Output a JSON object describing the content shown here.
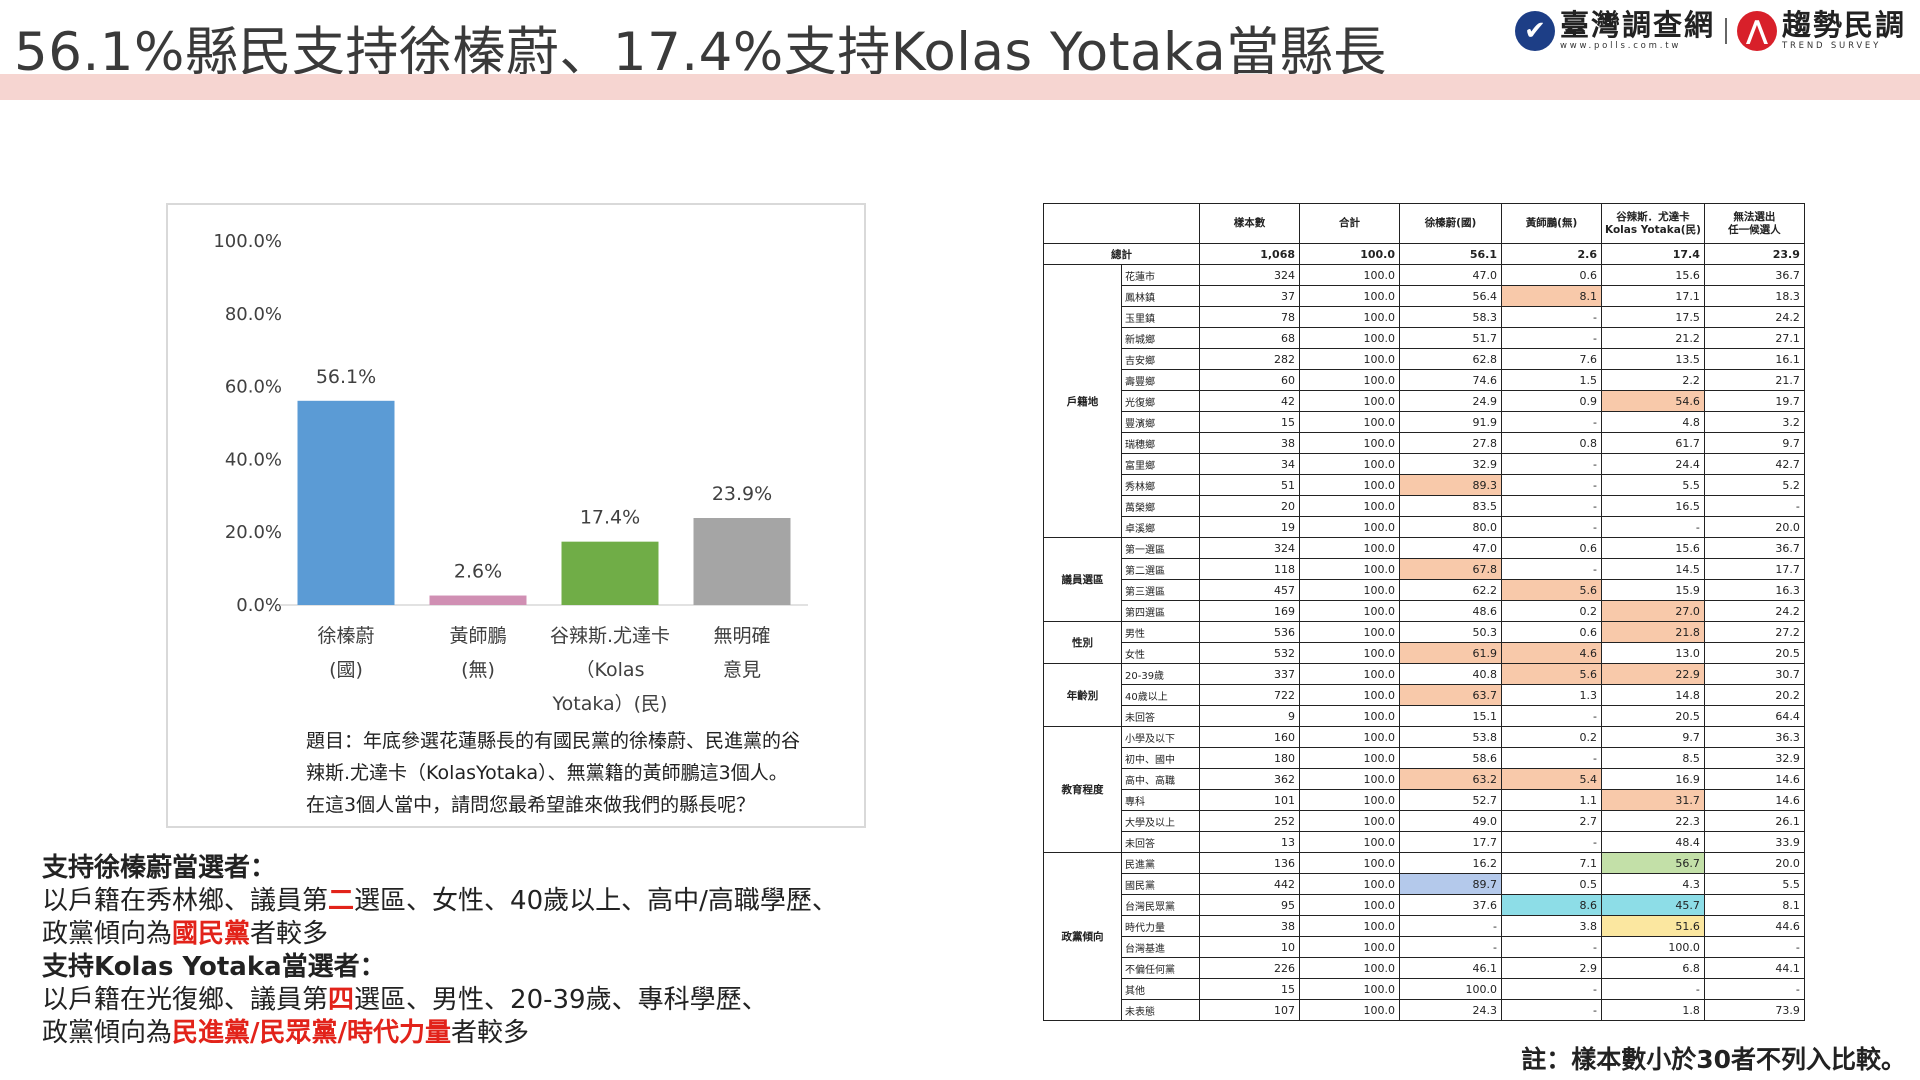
{
  "header": {
    "title": "56.1%縣民支持徐榛蔚、17.4%支持Kolas Yotaka當縣長",
    "logo1_name": "臺灣調查網",
    "logo1_url": "www.polls.com.tw",
    "logo2_name": "趨勢民調",
    "logo2_sub": "TREND SURVEY",
    "accent_band_color": "#f6d5d1"
  },
  "chart_data": {
    "type": "bar",
    "categories": [
      [
        "徐榛蔚",
        "(國)"
      ],
      [
        "黃師鵬",
        "(無)"
      ],
      [
        "谷辣斯.尤達卡",
        "（Kolas",
        "Yotaka）(民)"
      ],
      [
        "無明確",
        "意見"
      ]
    ],
    "values": [
      56.1,
      2.6,
      17.4,
      23.9
    ],
    "value_labels": [
      "56.1%",
      "2.6%",
      "17.4%",
      "23.9%"
    ],
    "colors": [
      "#5b9bd5",
      "#d08fb3",
      "#70ad47",
      "#a5a5a5"
    ],
    "y_ticks": [
      "100.0%",
      "80.0%",
      "60.0%",
      "40.0%",
      "20.0%",
      "0.0%"
    ],
    "ylim": [
      0,
      100
    ],
    "grid": false
  },
  "question": {
    "line1": "題目：年底參選花蓮縣長的有國民黨的徐榛蔚、民進黨的谷",
    "line2": "辣斯.尤達卡（KolasYotaka）、無黨籍的黃師鵬這3個人。",
    "line3": "在這3個人當中，請問您最希望誰來做我們的縣長呢？"
  },
  "notes": {
    "h1": "支持徐榛蔚當選者：",
    "l1a": "以戶籍在秀林鄉、議員第",
    "l1b": "二",
    "l1c": "選區、女性、40歲以上、高中/高職學歷、",
    "l2a": "政黨傾向為",
    "l2b": "國民黨",
    "l2c": "者較多",
    "h2": "支持Kolas Yotaka當選者：",
    "l3a": "以戶籍在光復鄉、議員第",
    "l3b": "四",
    "l3c": "選區、男性、20-39歲、專科學歷、",
    "l4a": "政黨傾向為",
    "l4b": "民進黨/民眾黨/時代力量",
    "l4c": "者較多"
  },
  "table": {
    "headers": [
      "",
      "",
      "樣本數",
      "合計",
      "徐榛蔚(國)",
      "黃師鵬(無)",
      "谷辣斯．尤達卡\nKolas Yotaka(民)",
      "無法選出\n任一候選人"
    ],
    "total": {
      "label": "總計",
      "cells": [
        "1,068",
        "100.0",
        "56.1",
        "2.6",
        "17.4",
        "23.9"
      ]
    },
    "groups": [
      {
        "name": "戶籍地",
        "rows": [
          {
            "label": "花蓮市",
            "cells": [
              "324",
              "100.0",
              "47.0",
              "0.6",
              "15.6",
              "36.7"
            ],
            "hl": {}
          },
          {
            "label": "鳳林鎮",
            "cells": [
              "37",
              "100.0",
              "56.4",
              "8.1",
              "17.1",
              "18.3"
            ],
            "hl": {
              "3": "orange"
            }
          },
          {
            "label": "玉里鎮",
            "cells": [
              "78",
              "100.0",
              "58.3",
              "-",
              "17.5",
              "24.2"
            ],
            "hl": {}
          },
          {
            "label": "新城鄉",
            "cells": [
              "68",
              "100.0",
              "51.7",
              "-",
              "21.2",
              "27.1"
            ],
            "hl": {}
          },
          {
            "label": "吉安鄉",
            "cells": [
              "282",
              "100.0",
              "62.8",
              "7.6",
              "13.5",
              "16.1"
            ],
            "hl": {}
          },
          {
            "label": "壽豐鄉",
            "cells": [
              "60",
              "100.0",
              "74.6",
              "1.5",
              "2.2",
              "21.7"
            ],
            "hl": {}
          },
          {
            "label": "光復鄉",
            "cells": [
              "42",
              "100.0",
              "24.9",
              "0.9",
              "54.6",
              "19.7"
            ],
            "hl": {
              "4": "orange"
            }
          },
          {
            "label": "豐濱鄉",
            "cells": [
              "15",
              "100.0",
              "91.9",
              "-",
              "4.8",
              "3.2"
            ],
            "hl": {}
          },
          {
            "label": "瑞穗鄉",
            "cells": [
              "38",
              "100.0",
              "27.8",
              "0.8",
              "61.7",
              "9.7"
            ],
            "hl": {}
          },
          {
            "label": "富里鄉",
            "cells": [
              "34",
              "100.0",
              "32.9",
              "-",
              "24.4",
              "42.7"
            ],
            "hl": {}
          },
          {
            "label": "秀林鄉",
            "cells": [
              "51",
              "100.0",
              "89.3",
              "-",
              "5.5",
              "5.2"
            ],
            "hl": {
              "2": "orange"
            }
          },
          {
            "label": "萬榮鄉",
            "cells": [
              "20",
              "100.0",
              "83.5",
              "-",
              "16.5",
              "-"
            ],
            "hl": {}
          },
          {
            "label": "卓溪鄉",
            "cells": [
              "19",
              "100.0",
              "80.0",
              "-",
              "-",
              "20.0"
            ],
            "hl": {}
          }
        ]
      },
      {
        "name": "議員選區",
        "rows": [
          {
            "label": "第一選區",
            "cells": [
              "324",
              "100.0",
              "47.0",
              "0.6",
              "15.6",
              "36.7"
            ],
            "hl": {}
          },
          {
            "label": "第二選區",
            "cells": [
              "118",
              "100.0",
              "67.8",
              "-",
              "14.5",
              "17.7"
            ],
            "hl": {
              "2": "orange"
            }
          },
          {
            "label": "第三選區",
            "cells": [
              "457",
              "100.0",
              "62.2",
              "5.6",
              "15.9",
              "16.3"
            ],
            "hl": {
              "3": "orange"
            }
          },
          {
            "label": "第四選區",
            "cells": [
              "169",
              "100.0",
              "48.6",
              "0.2",
              "27.0",
              "24.2"
            ],
            "hl": {
              "4": "orange"
            }
          }
        ]
      },
      {
        "name": "性別",
        "rows": [
          {
            "label": "男性",
            "cells": [
              "536",
              "100.0",
              "50.3",
              "0.6",
              "21.8",
              "27.2"
            ],
            "hl": {
              "4": "orange"
            }
          },
          {
            "label": "女性",
            "cells": [
              "532",
              "100.0",
              "61.9",
              "4.6",
              "13.0",
              "20.5"
            ],
            "hl": {
              "2": "orange",
              "3": "orange"
            }
          }
        ]
      },
      {
        "name": "年齡別",
        "rows": [
          {
            "label": "20-39歲",
            "cells": [
              "337",
              "100.0",
              "40.8",
              "5.6",
              "22.9",
              "30.7"
            ],
            "hl": {
              "3": "orange",
              "4": "orange"
            }
          },
          {
            "label": "40歲以上",
            "cells": [
              "722",
              "100.0",
              "63.7",
              "1.3",
              "14.8",
              "20.2"
            ],
            "hl": {
              "2": "orange"
            }
          },
          {
            "label": "未回答",
            "cells": [
              "9",
              "100.0",
              "15.1",
              "-",
              "20.5",
              "64.4"
            ],
            "hl": {}
          }
        ]
      },
      {
        "name": "教育程度",
        "rows": [
          {
            "label": "小學及以下",
            "cells": [
              "160",
              "100.0",
              "53.8",
              "0.2",
              "9.7",
              "36.3"
            ],
            "hl": {}
          },
          {
            "label": "初中、國中",
            "cells": [
              "180",
              "100.0",
              "58.6",
              "-",
              "8.5",
              "32.9"
            ],
            "hl": {}
          },
          {
            "label": "高中、高職",
            "cells": [
              "362",
              "100.0",
              "63.2",
              "5.4",
              "16.9",
              "14.6"
            ],
            "hl": {
              "2": "orange",
              "3": "orange"
            }
          },
          {
            "label": "專科",
            "cells": [
              "101",
              "100.0",
              "52.7",
              "1.1",
              "31.7",
              "14.6"
            ],
            "hl": {
              "4": "orange"
            }
          },
          {
            "label": "大學及以上",
            "cells": [
              "252",
              "100.0",
              "49.0",
              "2.7",
              "22.3",
              "26.1"
            ],
            "hl": {}
          },
          {
            "label": "未回答",
            "cells": [
              "13",
              "100.0",
              "17.7",
              "-",
              "48.4",
              "33.9"
            ],
            "hl": {}
          }
        ]
      },
      {
        "name": "政黨傾向",
        "rows": [
          {
            "label": "民進黨",
            "cells": [
              "136",
              "100.0",
              "16.2",
              "7.1",
              "56.7",
              "20.0"
            ],
            "hl": {
              "4": "green"
            }
          },
          {
            "label": "國民黨",
            "cells": [
              "442",
              "100.0",
              "89.7",
              "0.5",
              "4.3",
              "5.5"
            ],
            "hl": {
              "2": "blue"
            }
          },
          {
            "label": "台灣民眾黨",
            "cells": [
              "95",
              "100.0",
              "37.6",
              "8.6",
              "45.7",
              "8.1"
            ],
            "hl": {
              "3": "cyan",
              "4": "cyan"
            }
          },
          {
            "label": "時代力量",
            "cells": [
              "38",
              "100.0",
              "-",
              "3.8",
              "51.6",
              "44.6"
            ],
            "hl": {
              "4": "yellow"
            }
          },
          {
            "label": "台灣基進",
            "cells": [
              "10",
              "100.0",
              "-",
              "-",
              "100.0",
              "-"
            ],
            "hl": {}
          },
          {
            "label": "不偏任何黨",
            "cells": [
              "226",
              "100.0",
              "46.1",
              "2.9",
              "6.8",
              "44.1"
            ],
            "hl": {}
          },
          {
            "label": "其他",
            "cells": [
              "15",
              "100.0",
              "100.0",
              "-",
              "-",
              "-"
            ],
            "hl": {}
          },
          {
            "label": "未表態",
            "cells": [
              "107",
              "100.0",
              "24.3",
              "-",
              "1.8",
              "73.9"
            ],
            "hl": {}
          }
        ]
      }
    ]
  },
  "footnote": "註：樣本數小於30者不列入比較。"
}
